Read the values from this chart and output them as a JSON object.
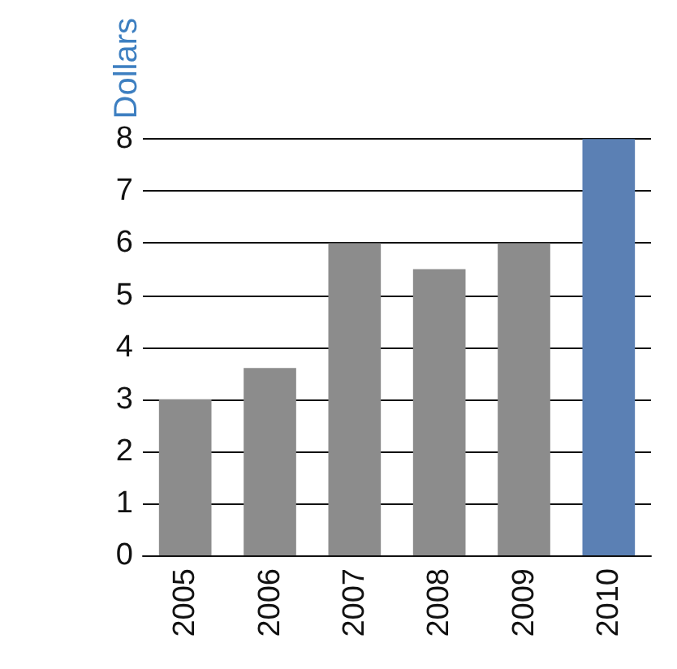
{
  "chart_data": {
    "type": "bar",
    "ylabel": "Dollars",
    "categories": [
      "2005",
      "2006",
      "2007",
      "2008",
      "2009",
      "2010"
    ],
    "values": [
      3,
      3.6,
      6,
      5.5,
      6,
      8
    ],
    "colors": [
      "#8c8c8c",
      "#8c8c8c",
      "#8c8c8c",
      "#8c8c8c",
      "#8c8c8c",
      "#5b80b4"
    ],
    "ylim": [
      0,
      8
    ],
    "yticks": [
      0,
      1,
      2,
      3,
      4,
      5,
      6,
      7,
      8
    ],
    "grid": "y"
  }
}
